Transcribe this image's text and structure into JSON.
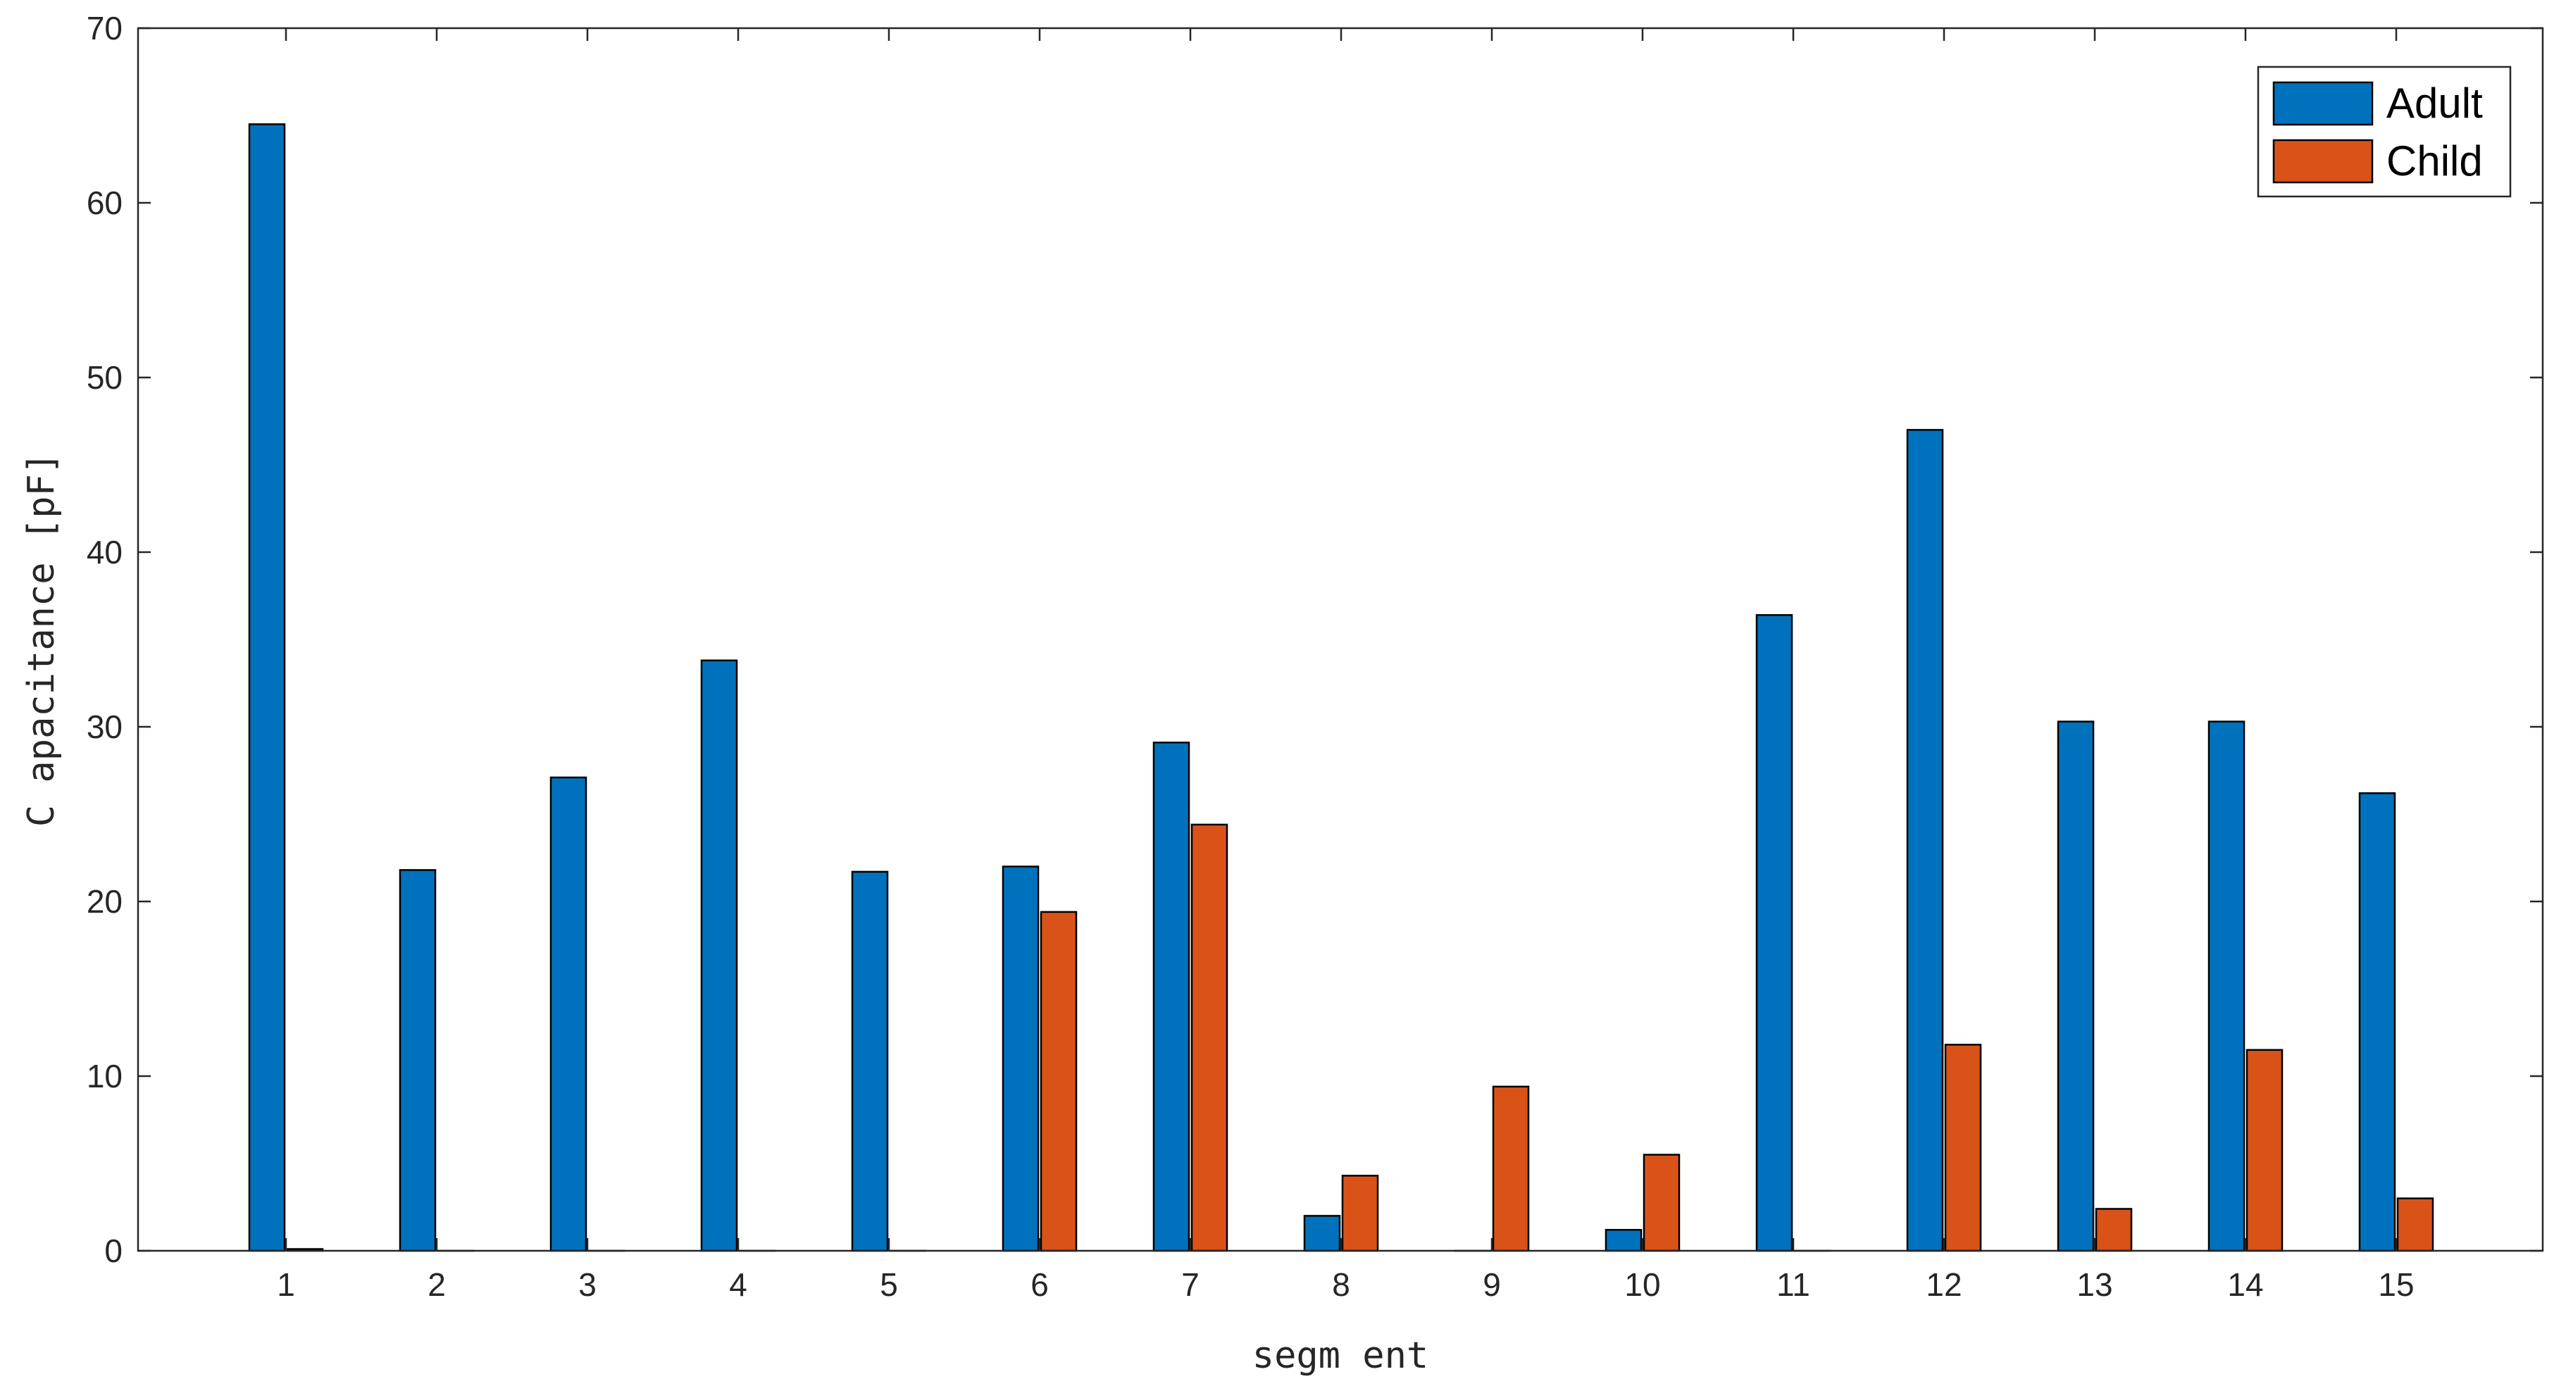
{
  "chart_data": {
    "type": "bar",
    "title": "",
    "xlabel": "segm ent",
    "ylabel": "C apacitance [pF]",
    "categories": [
      "1",
      "2",
      "3",
      "4",
      "5",
      "6",
      "7",
      "8",
      "9",
      "10",
      "11",
      "12",
      "13",
      "14",
      "15"
    ],
    "ylim": [
      0,
      70
    ],
    "yticks": [
      "0",
      "10",
      "20",
      "30",
      "40",
      "50",
      "60",
      "70"
    ],
    "grid": false,
    "legend_position": "top-right",
    "series": [
      {
        "name": "Adult",
        "color": "#0072BD",
        "values": [
          64.5,
          21.8,
          27.1,
          33.8,
          21.7,
          22.0,
          29.1,
          2.0,
          0,
          1.2,
          36.4,
          47.0,
          30.3,
          30.3,
          26.2
        ]
      },
      {
        "name": "Child",
        "color": "#D95319",
        "values": [
          0.1,
          0,
          0,
          0,
          0,
          19.4,
          24.4,
          4.3,
          9.4,
          5.5,
          0,
          11.8,
          2.4,
          11.5,
          3.0
        ]
      }
    ]
  }
}
